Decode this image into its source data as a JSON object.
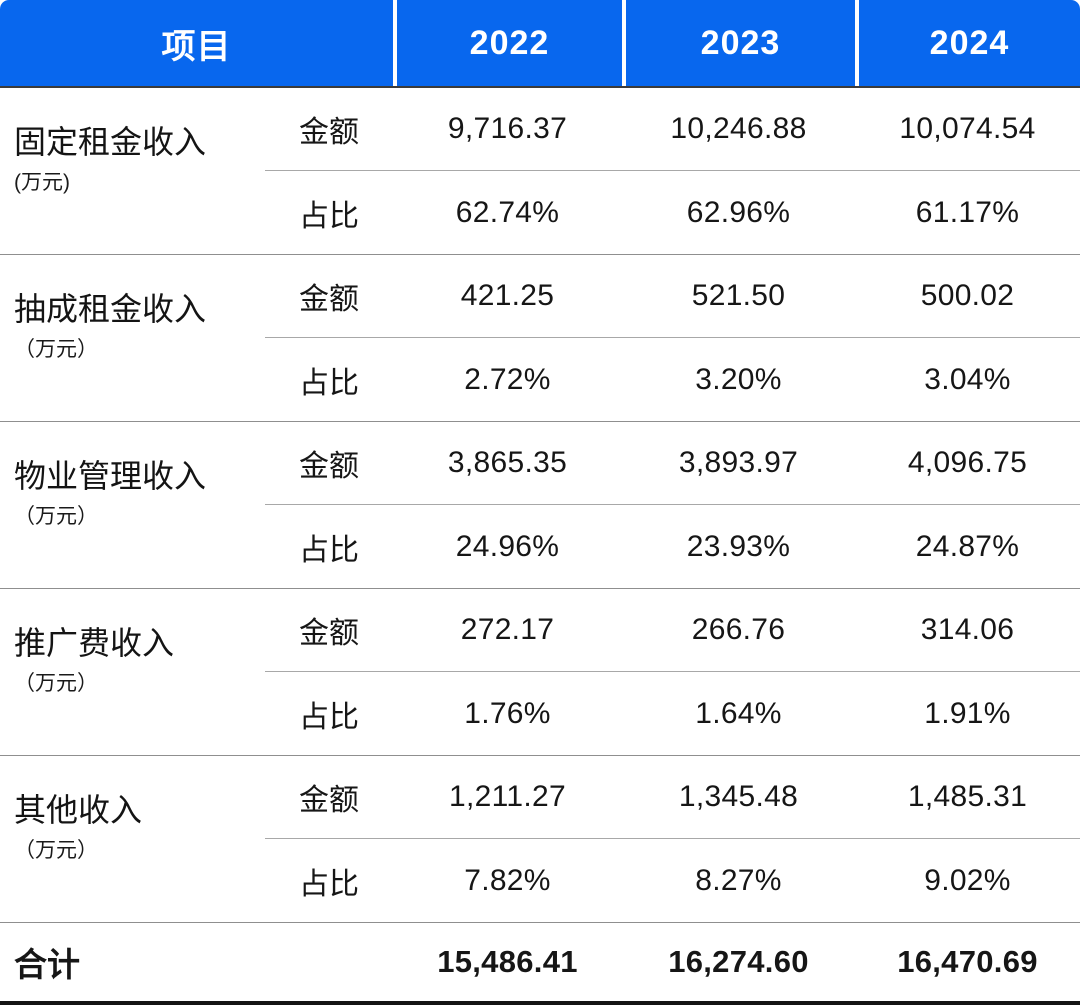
{
  "chart_data": {
    "type": "table",
    "header": {
      "item": "项目",
      "years": [
        "2022",
        "2023",
        "2024"
      ]
    },
    "metric_labels": {
      "amount": "金额",
      "share": "占比"
    },
    "groups": [
      {
        "name": "固定租金收入",
        "unit": "(万元)",
        "amount": [
          "9,716.37",
          "10,246.88",
          "10,074.54"
        ],
        "share": [
          "62.74%",
          "62.96%",
          "61.17%"
        ]
      },
      {
        "name": "抽成租金收入",
        "unit": "（万元）",
        "amount": [
          "421.25",
          "521.50",
          "500.02"
        ],
        "share": [
          "2.72%",
          "3.20%",
          "3.04%"
        ]
      },
      {
        "name": "物业管理收入",
        "unit": "（万元）",
        "amount": [
          "3,865.35",
          "3,893.97",
          "4,096.75"
        ],
        "share": [
          "24.96%",
          "23.93%",
          "24.87%"
        ]
      },
      {
        "name": "推广费收入",
        "unit": "（万元）",
        "amount": [
          "272.17",
          "266.76",
          "314.06"
        ],
        "share": [
          "1.76%",
          "1.64%",
          "1.91%"
        ]
      },
      {
        "name": "其他收入",
        "unit": "（万元）",
        "amount": [
          "1,211.27",
          "1,345.48",
          "1,485.31"
        ],
        "share": [
          "7.82%",
          "8.27%",
          "9.02%"
        ]
      }
    ],
    "total": {
      "label": "合计",
      "values": [
        "15,486.41",
        "16,274.60",
        "16,470.69"
      ]
    },
    "colors": {
      "header_bg": "#0867ee",
      "header_text": "#ffffff",
      "body_text": "#161616",
      "line_light": "#a8a8a8",
      "line_mid": "#8f8f8f",
      "line_dark": "#3b3b3b",
      "bottom_rule": "#141414"
    }
  }
}
